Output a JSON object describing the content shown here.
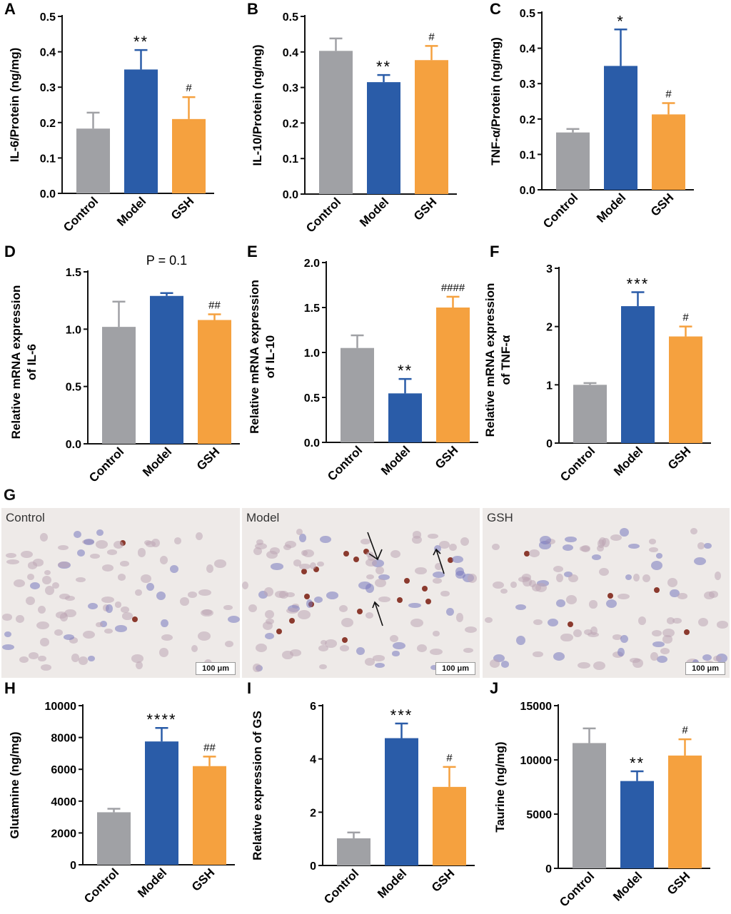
{
  "colors": {
    "Control": "#a0a1a5",
    "Model": "#2a5ca8",
    "GSH": "#f5a13f",
    "axis": "#111111",
    "stain_dark": "#8b3a2e"
  },
  "chart_data": [
    {
      "id": "A",
      "type": "bar",
      "categories": [
        "Control",
        "Model",
        "GSH"
      ],
      "values": [
        0.183,
        0.35,
        0.21
      ],
      "errors": [
        0.045,
        0.055,
        0.062
      ],
      "annotations": [
        "",
        "**",
        "#"
      ],
      "ylabel": "IL-6/Protein (ng/mg)",
      "ylim": [
        0,
        0.5
      ],
      "yticks": [
        "0.0",
        "0.1",
        "0.2",
        "0.3",
        "0.4",
        "0.5"
      ],
      "grid": false
    },
    {
      "id": "B",
      "type": "bar",
      "categories": [
        "Control",
        "Model",
        "GSH"
      ],
      "values": [
        0.403,
        0.315,
        0.377
      ],
      "errors": [
        0.035,
        0.02,
        0.04
      ],
      "annotations": [
        "",
        "**",
        "#"
      ],
      "ylabel": "IL-10/Protein (ng/mg)",
      "ylim": [
        0,
        0.5
      ],
      "yticks": [
        "0.0",
        "0.1",
        "0.2",
        "0.3",
        "0.4",
        "0.5"
      ],
      "grid": false
    },
    {
      "id": "C",
      "type": "bar",
      "categories": [
        "Control",
        "Model",
        "GSH"
      ],
      "values": [
        0.162,
        0.35,
        0.213
      ],
      "errors": [
        0.01,
        0.103,
        0.032
      ],
      "annotations": [
        "",
        "*",
        "#"
      ],
      "ylabel": "TNF-α/Protein (ng/mg)",
      "ylim": [
        0,
        0.5
      ],
      "yticks": [
        "0.0",
        "0.1",
        "0.2",
        "0.3",
        "0.4",
        "0.5"
      ],
      "grid": false
    },
    {
      "id": "D",
      "type": "bar",
      "categories": [
        "Control",
        "Model",
        "GSH"
      ],
      "values": [
        1.02,
        1.29,
        1.08
      ],
      "errors": [
        0.22,
        0.025,
        0.05
      ],
      "annotations": [
        "",
        "",
        "##"
      ],
      "top_note": "P = 0.1",
      "ylabel_lines": [
        "Relative mRNA expression",
        "of  IL-6"
      ],
      "ylim": [
        0,
        1.5
      ],
      "yticks": [
        "0.0",
        "0.5",
        "1.0",
        "1.5"
      ],
      "grid": false
    },
    {
      "id": "E",
      "type": "bar",
      "categories": [
        "Control",
        "Model",
        "GSH"
      ],
      "values": [
        1.05,
        0.545,
        1.5
      ],
      "errors": [
        0.14,
        0.16,
        0.12
      ],
      "annotations": [
        "",
        "**",
        "####"
      ],
      "ylabel_lines": [
        "Relative mRNA expression",
        "of  IL-10"
      ],
      "ylim": [
        0,
        2.0
      ],
      "yticks": [
        "0.0",
        "0.5",
        "1.0",
        "1.5",
        "2.0"
      ],
      "grid": false
    },
    {
      "id": "F",
      "type": "bar",
      "categories": [
        "Control",
        "Model",
        "GSH"
      ],
      "values": [
        1.0,
        2.35,
        1.83
      ],
      "errors": [
        0.03,
        0.24,
        0.17
      ],
      "annotations": [
        "",
        "***",
        "#"
      ],
      "ylabel_lines": [
        "Relative mRNA expression",
        "of  TNF-α"
      ],
      "ylim": [
        0,
        3
      ],
      "yticks": [
        "0",
        "1",
        "2",
        "3"
      ],
      "grid": false
    },
    {
      "id": "H",
      "type": "bar",
      "categories": [
        "Control",
        "Model",
        "GSH"
      ],
      "values": [
        3300,
        7750,
        6200
      ],
      "errors": [
        220,
        850,
        600
      ],
      "annotations": [
        "",
        "****",
        "##"
      ],
      "ylabel": "Glutamine (ng/mg)",
      "ylim": [
        0,
        10000
      ],
      "yticks": [
        "0",
        "2000",
        "4000",
        "6000",
        "8000",
        "10000"
      ],
      "grid": false
    },
    {
      "id": "I",
      "type": "bar",
      "categories": [
        "Control",
        "Model",
        "GSH"
      ],
      "values": [
        1.02,
        4.78,
        2.95
      ],
      "errors": [
        0.22,
        0.55,
        0.75
      ],
      "annotations": [
        "",
        "***",
        "#"
      ],
      "ylabel": "Relative expression of GS",
      "ylim": [
        0,
        6
      ],
      "yticks": [
        "0",
        "2",
        "4",
        "6"
      ],
      "grid": false
    },
    {
      "id": "J",
      "type": "bar",
      "categories": [
        "Control",
        "Model",
        "GSH"
      ],
      "values": [
        11550,
        8050,
        10400
      ],
      "errors": [
        1350,
        900,
        1500
      ],
      "annotations": [
        "",
        "**",
        "#"
      ],
      "ylabel": "Taurine (ng/mg)",
      "ylim": [
        0,
        15000
      ],
      "yticks": [
        "0",
        "5000",
        "10000",
        "15000"
      ],
      "grid": false
    }
  ],
  "histology": {
    "panel_label": "G",
    "panels": [
      {
        "label": "Control",
        "scale": "100  μm"
      },
      {
        "label": "Model",
        "scale": "100  μm"
      },
      {
        "label": "GSH",
        "scale": "100    μm"
      }
    ]
  }
}
